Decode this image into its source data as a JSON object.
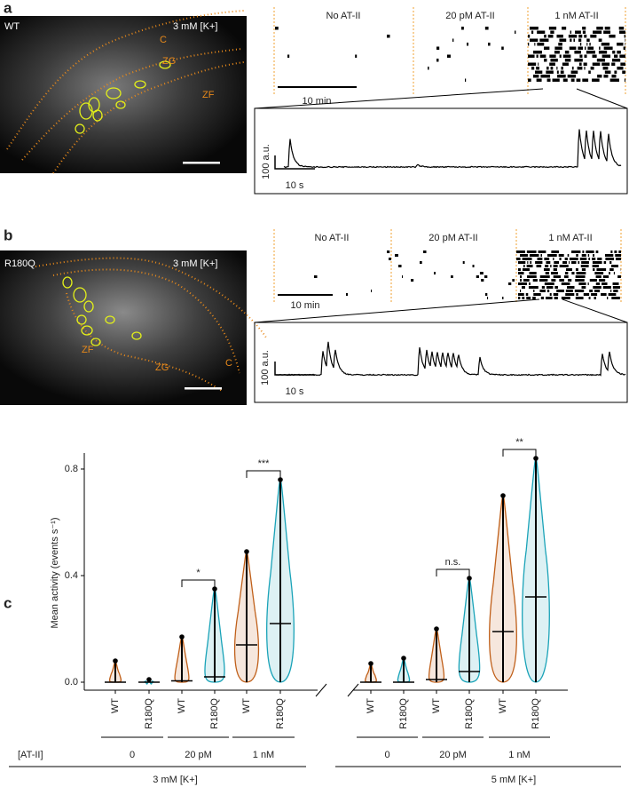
{
  "panels": {
    "a": {
      "label": "a",
      "genotype": "WT",
      "potassium": "3 mM [K+]",
      "zones": [
        "C",
        "ZG",
        "ZF"
      ],
      "conditions": [
        "No AT-II",
        "20 pM AT-II",
        "1 nM AT-II"
      ],
      "time_scale": "10 min",
      "amp_scale": "100 a.u.",
      "trace_scale": "10 s"
    },
    "b": {
      "label": "b",
      "genotype": "R180Q",
      "potassium": "3 mM [K+]",
      "zones": [
        "ZF",
        "ZG",
        "C"
      ],
      "conditions": [
        "No AT-II",
        "20 pM AT-II",
        "1 nM AT-II"
      ],
      "time_scale": "10 min",
      "amp_scale": "100 a.u.",
      "trace_scale": "10 s"
    },
    "c": {
      "label": "c"
    }
  },
  "chart_data": {
    "type": "violin",
    "y_label": "Mean activity (events s⁻¹)",
    "categories": [
      "WT",
      "R180Q",
      "WT",
      "R180Q",
      "WT",
      "R180Q",
      "WT",
      "R180Q",
      "WT",
      "R180Q",
      "WT",
      "R180Q"
    ],
    "values": [
      0.0,
      0.0,
      0.005,
      0.02,
      0.14,
      0.22,
      0.0,
      0.0,
      0.01,
      0.04,
      0.19,
      0.32
    ],
    "max_values": [
      0.08,
      0.01,
      0.17,
      0.35,
      0.49,
      0.76,
      0.07,
      0.09,
      0.2,
      0.39,
      0.7,
      0.84
    ],
    "group_colors": [
      "#c0601a",
      "#1aa3b8"
    ],
    "ylim": [
      -0.03,
      0.86
    ],
    "yticks": [
      {
        "value": 0,
        "label": "0.0"
      },
      0.4,
      0.8
    ],
    "row_label": "[AT-II]",
    "groups": [
      "0",
      "20 pM",
      "1 nM",
      "0",
      "20 pM",
      "1 nM"
    ],
    "conditions": [
      "3 mM [K+]",
      "5 mM [K+]"
    ],
    "significance": [
      "*",
      "***",
      "n.s.",
      "**"
    ]
  }
}
